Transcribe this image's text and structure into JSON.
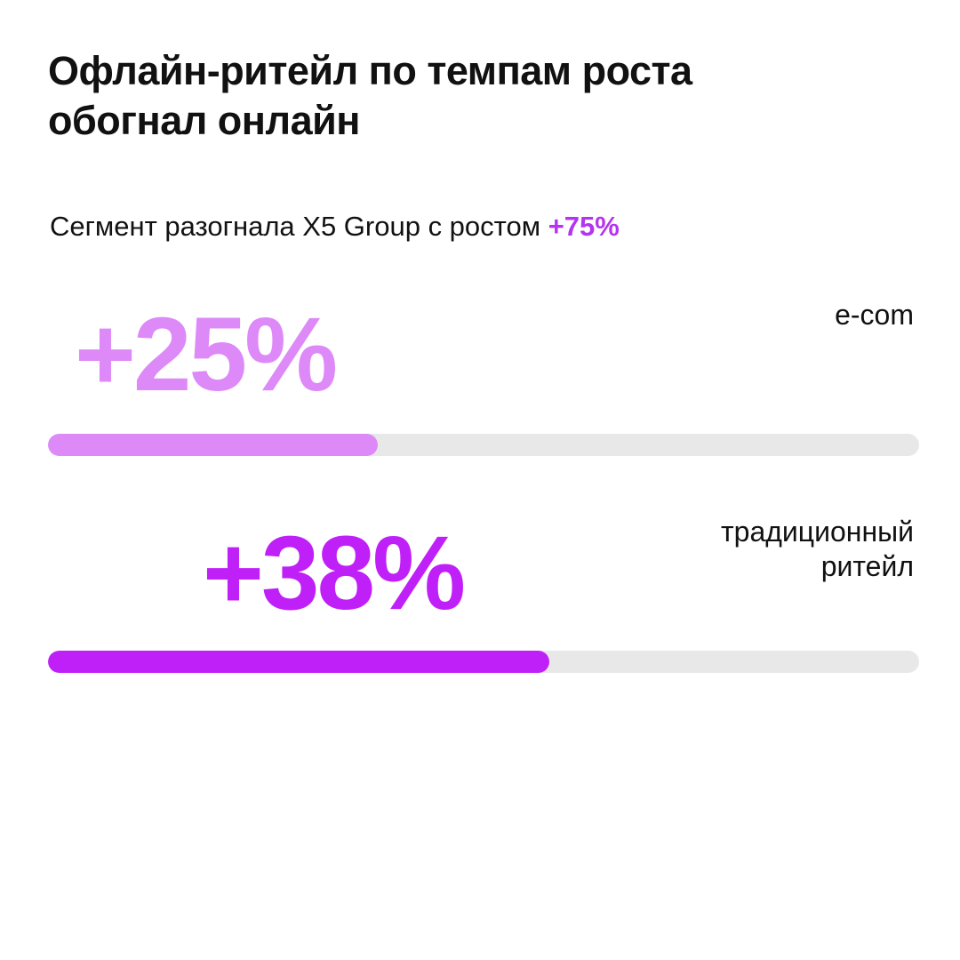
{
  "title": "Офлайн-ритейл по темпам роста обогнал онлайн",
  "subtitle": {
    "text": "Сегмент разогнала X5 Group с ростом",
    "highlight": "+75%",
    "highlight_color": "#b434f0"
  },
  "chart_data": {
    "type": "bar",
    "title": "Офлайн-ритейл по темпам роста обогнал онлайн",
    "categories": [
      "e-com",
      "традиционный ритейл"
    ],
    "values": [
      25,
      38
    ],
    "value_labels": [
      "+25%",
      "+38%"
    ],
    "colors": [
      "#dd8af8",
      "#c020f8"
    ],
    "track_color": "#e8e8e8",
    "scale_max": 66,
    "rows": [
      {
        "label": "e-com",
        "value_label": "+25%",
        "value": 25,
        "color": "#dd8af8"
      },
      {
        "label": "традиционный ритейл",
        "value_label": "+38%",
        "value": 38,
        "color": "#c020f8"
      }
    ]
  }
}
